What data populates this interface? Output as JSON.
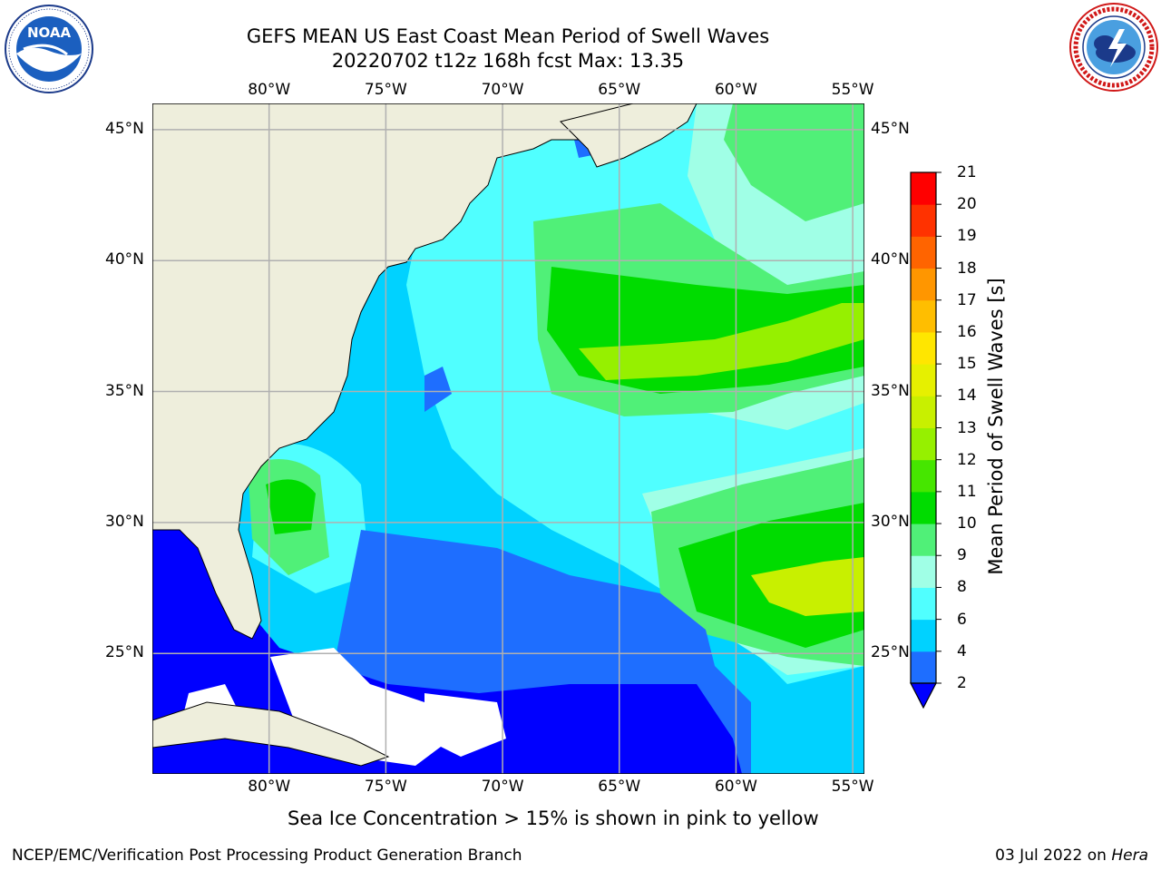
{
  "title": {
    "line1": "GEFS MEAN US East Coast Mean Period of Swell Waves",
    "line2": "20220702 t12z 168h fcst   Max: 13.35"
  },
  "logos": {
    "left": {
      "name": "noaa-logo",
      "text": "NOAA",
      "ring_text": "NATIONAL OCEANIC AND ATMOSPHERIC ADMINISTRATION · U.S. DEPARTMENT OF COMMERCE"
    },
    "right": {
      "name": "nws-logo",
      "ring_text": "NATIONAL WEATHER SERVICE"
    }
  },
  "map": {
    "projection": "Plate Carree",
    "extent_lon": [
      -85,
      -54.5
    ],
    "extent_lat": [
      20.4,
      46
    ],
    "lon_ticks": [
      "80°W",
      "75°W",
      "70°W",
      "65°W",
      "60°W",
      "55°W"
    ],
    "lat_ticks": [
      "45°N",
      "40°N",
      "35°N",
      "30°N",
      "25°N"
    ],
    "grid": true,
    "land_color": "#eeeedc",
    "gridline_color": "#b0b0b0"
  },
  "colorbar": {
    "title": "Mean Period of Swell Waves [s]",
    "levels": [
      "2",
      "4",
      "6",
      "8",
      "9",
      "10",
      "11",
      "12",
      "13",
      "14",
      "15",
      "16",
      "17",
      "18",
      "19",
      "20",
      "21"
    ],
    "colors": [
      "#0000ff",
      "#1e6eff",
      "#00d2ff",
      "#50ffff",
      "#a0ffe6",
      "#50f078",
      "#00dc00",
      "#46e600",
      "#96f000",
      "#c8f000",
      "#e6f000",
      "#ffe600",
      "#ffbe00",
      "#ff9600",
      "#ff6400",
      "#ff3200",
      "#ff0000"
    ],
    "extend_min": true
  },
  "caption": "Sea Ice Concentration > 15% is shown in pink to yellow",
  "footer": {
    "left": "NCEP/EMC/Verification Post Processing Product Generation Branch",
    "right_date": "03 Jul 2022 on ",
    "right_machine": "Hera"
  }
}
